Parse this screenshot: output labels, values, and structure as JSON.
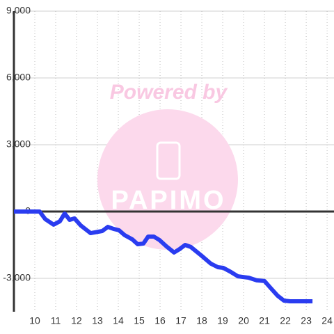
{
  "chart_data": {
    "type": "line",
    "watermark": {
      "line1": "Powered by",
      "line2": "PAPIMO"
    },
    "x": [
      9,
      10.23,
      10.5,
      10.9,
      11.2,
      11.43,
      11.67,
      11.9,
      12.2,
      12.67,
      13.23,
      13.5,
      13.77,
      14.03,
      14.3,
      14.67,
      14.93,
      15.2,
      15.43,
      15.7,
      15.97,
      16.3,
      16.67,
      16.93,
      17.2,
      17.47,
      17.97,
      18.43,
      18.77,
      19.03,
      19.4,
      19.73,
      20.23,
      20.63,
      21,
      21.3,
      21.63,
      21.93,
      22.23,
      23.3
    ],
    "series": [
      {
        "color": "#2a3cf0",
        "values": [
          0,
          0,
          -340,
          -590,
          -440,
          -90,
          -375,
          -310,
          -625,
          -970,
          -875,
          -690,
          -780,
          -840,
          -1060,
          -1250,
          -1470,
          -1440,
          -1125,
          -1125,
          -1280,
          -1560,
          -1840,
          -1690,
          -1500,
          -1590,
          -1970,
          -2340,
          -2500,
          -2530,
          -2720,
          -2910,
          -2970,
          -3090,
          -3120,
          -3440,
          -3780,
          -4000,
          -4030,
          -4030
        ]
      }
    ],
    "xlim": [
      9,
      24.33
    ],
    "xticks": [
      10,
      11,
      12,
      13,
      14,
      15,
      16,
      17,
      18,
      19,
      20,
      21,
      22,
      23,
      24
    ],
    "ylim": [
      -4500,
      9000
    ],
    "yticks": [
      {
        "value": 9000,
        "label": "9,000"
      },
      {
        "value": 6000,
        "label": "6,000"
      },
      {
        "value": 3000,
        "label": "3,000"
      },
      0,
      {
        "value": -3000,
        "label": "-3,000"
      }
    ],
    "grid": true
  }
}
